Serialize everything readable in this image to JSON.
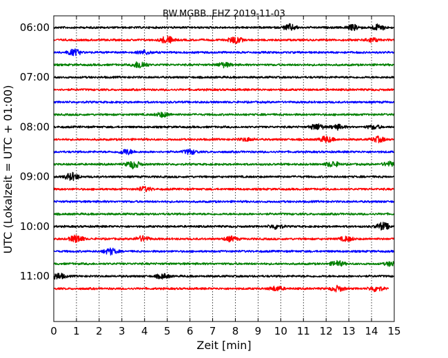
{
  "chart_data": {
    "type": "line",
    "title": "BW.MGBB..EHZ 2019-11-03",
    "xlabel": "Zeit  [min]",
    "ylabel": "UTC (Lokalzeit = UTC + 01:00)",
    "xlim": [
      0,
      15
    ],
    "x_ticks": [
      "0",
      "1",
      "2",
      "3",
      "4",
      "5",
      "6",
      "7",
      "8",
      "9",
      "10",
      "11",
      "12",
      "13",
      "14",
      "15"
    ],
    "y_ticks": [
      "06:00",
      "07:00",
      "08:00",
      "09:00",
      "10:00",
      "11:00"
    ],
    "grid": "vertical dotted",
    "trace_colors": [
      "#000000",
      "#ff0000",
      "#0000ff",
      "#008000"
    ],
    "traces": [
      {
        "start": "06:00",
        "color": "#000000",
        "end_min": 15,
        "bursts": [
          [
            10.4,
            0.8
          ],
          [
            13.2,
            0.7
          ],
          [
            14.3,
            0.8
          ]
        ]
      },
      {
        "start": "06:15",
        "color": "#ff0000",
        "end_min": 15,
        "bursts": [
          [
            5.0,
            1.0
          ],
          [
            8.0,
            0.9
          ],
          [
            14.0,
            0.6
          ]
        ]
      },
      {
        "start": "06:30",
        "color": "#0000ff",
        "end_min": 15,
        "bursts": [
          [
            0.9,
            0.8
          ],
          [
            4.0,
            0.5
          ]
        ]
      },
      {
        "start": "06:45",
        "color": "#008000",
        "end_min": 15,
        "bursts": [
          [
            3.8,
            1.0
          ],
          [
            7.5,
            0.6
          ]
        ]
      },
      {
        "start": "07:00",
        "color": "#000000",
        "end_min": 15,
        "bursts": []
      },
      {
        "start": "07:15",
        "color": "#ff0000",
        "end_min": 15,
        "bursts": []
      },
      {
        "start": "07:30",
        "color": "#0000ff",
        "end_min": 15,
        "bursts": []
      },
      {
        "start": "07:45",
        "color": "#008000",
        "end_min": 15,
        "bursts": [
          [
            4.8,
            0.6
          ]
        ]
      },
      {
        "start": "08:00",
        "color": "#000000",
        "end_min": 15,
        "bursts": [
          [
            11.6,
            0.8
          ],
          [
            12.5,
            0.6
          ],
          [
            14.1,
            0.5
          ]
        ]
      },
      {
        "start": "08:15",
        "color": "#ff0000",
        "end_min": 15,
        "bursts": [
          [
            12.0,
            0.8
          ],
          [
            14.3,
            0.7
          ],
          [
            8.5,
            0.4
          ]
        ]
      },
      {
        "start": "08:30",
        "color": "#0000ff",
        "end_min": 15,
        "bursts": [
          [
            3.2,
            0.7
          ],
          [
            6.0,
            0.6
          ]
        ]
      },
      {
        "start": "08:45",
        "color": "#008000",
        "end_min": 15,
        "bursts": [
          [
            3.5,
            1.0
          ],
          [
            12.3,
            0.7
          ],
          [
            14.8,
            0.6
          ]
        ]
      },
      {
        "start": "09:00",
        "color": "#000000",
        "end_min": 15,
        "bursts": [
          [
            0.8,
            1.0
          ]
        ]
      },
      {
        "start": "09:15",
        "color": "#ff0000",
        "end_min": 15,
        "bursts": [
          [
            4.0,
            0.6
          ]
        ]
      },
      {
        "start": "09:30",
        "color": "#0000ff",
        "end_min": 15,
        "bursts": []
      },
      {
        "start": "09:45",
        "color": "#008000",
        "end_min": 15,
        "bursts": []
      },
      {
        "start": "10:00",
        "color": "#000000",
        "end_min": 15,
        "bursts": [
          [
            9.8,
            0.6
          ],
          [
            14.5,
            1.0
          ]
        ]
      },
      {
        "start": "10:15",
        "color": "#ff0000",
        "end_min": 15,
        "bursts": [
          [
            1.0,
            1.0
          ],
          [
            3.9,
            0.7
          ],
          [
            7.8,
            0.6
          ],
          [
            12.9,
            0.6
          ]
        ]
      },
      {
        "start": "10:30",
        "color": "#0000ff",
        "end_min": 15,
        "bursts": [
          [
            2.5,
            0.8
          ]
        ]
      },
      {
        "start": "10:45",
        "color": "#008000",
        "end_min": 15,
        "bursts": [
          [
            12.5,
            0.7
          ],
          [
            14.9,
            0.6
          ]
        ]
      },
      {
        "start": "11:00",
        "color": "#000000",
        "end_min": 15,
        "bursts": [
          [
            0.2,
            0.8
          ],
          [
            4.8,
            0.6
          ]
        ]
      },
      {
        "start": "11:15",
        "color": "#ff0000",
        "end_min": 14.75,
        "bursts": [
          [
            9.8,
            0.6
          ],
          [
            12.5,
            0.7
          ],
          [
            14.2,
            0.7
          ]
        ]
      }
    ]
  }
}
